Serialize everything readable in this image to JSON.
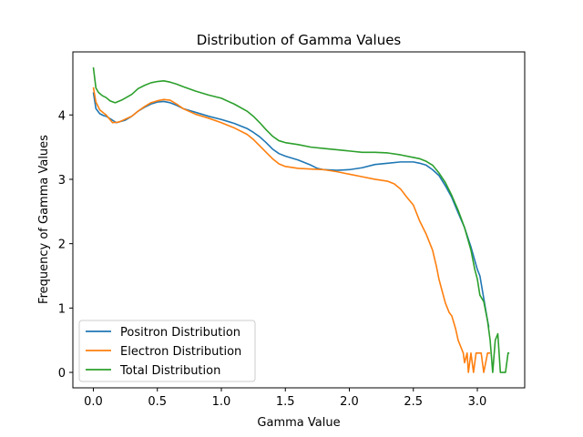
{
  "chart_data": {
    "type": "line",
    "title": "Distribution of Gamma Values",
    "xlabel": "Gamma Value",
    "ylabel": "Frequency of Gamma Values",
    "xlim": [
      -0.16,
      3.37
    ],
    "ylim": [
      -0.24,
      4.98
    ],
    "xticks": [
      0.0,
      0.5,
      1.0,
      1.5,
      2.0,
      2.5,
      3.0
    ],
    "xtick_labels": [
      "0.0",
      "0.5",
      "1.0",
      "1.5",
      "2.0",
      "2.5",
      "3.0"
    ],
    "yticks": [
      0,
      1,
      2,
      3,
      4
    ],
    "ytick_labels": [
      "0",
      "1",
      "2",
      "3",
      "4"
    ],
    "grid": false,
    "legend_position": "lower-left",
    "series": [
      {
        "name": "Positron Distribution",
        "color": "#1f77b4",
        "points": [
          [
            0.0,
            4.35
          ],
          [
            0.02,
            4.1
          ],
          [
            0.05,
            4.02
          ],
          [
            0.08,
            3.99
          ],
          [
            0.1,
            3.98
          ],
          [
            0.14,
            3.93
          ],
          [
            0.18,
            3.88
          ],
          [
            0.25,
            3.92
          ],
          [
            0.3,
            3.98
          ],
          [
            0.35,
            4.06
          ],
          [
            0.4,
            4.12
          ],
          [
            0.45,
            4.17
          ],
          [
            0.5,
            4.2
          ],
          [
            0.55,
            4.21
          ],
          [
            0.6,
            4.19
          ],
          [
            0.65,
            4.15
          ],
          [
            0.7,
            4.1
          ],
          [
            0.8,
            4.04
          ],
          [
            0.9,
            3.98
          ],
          [
            1.0,
            3.93
          ],
          [
            1.1,
            3.87
          ],
          [
            1.2,
            3.79
          ],
          [
            1.25,
            3.73
          ],
          [
            1.3,
            3.66
          ],
          [
            1.35,
            3.57
          ],
          [
            1.4,
            3.47
          ],
          [
            1.45,
            3.4
          ],
          [
            1.5,
            3.36
          ],
          [
            1.6,
            3.3
          ],
          [
            1.7,
            3.22
          ],
          [
            1.75,
            3.17
          ],
          [
            1.8,
            3.15
          ],
          [
            1.9,
            3.14
          ],
          [
            2.0,
            3.15
          ],
          [
            2.1,
            3.18
          ],
          [
            2.2,
            3.23
          ],
          [
            2.3,
            3.25
          ],
          [
            2.4,
            3.27
          ],
          [
            2.5,
            3.27
          ],
          [
            2.55,
            3.25
          ],
          [
            2.6,
            3.22
          ],
          [
            2.65,
            3.15
          ],
          [
            2.7,
            3.06
          ],
          [
            2.75,
            2.9
          ],
          [
            2.8,
            2.72
          ],
          [
            2.85,
            2.48
          ],
          [
            2.9,
            2.25
          ],
          [
            2.95,
            1.95
          ],
          [
            3.0,
            1.6
          ],
          [
            3.02,
            1.5
          ],
          [
            3.05,
            1.15
          ],
          [
            3.08,
            0.8
          ],
          [
            3.09,
            0.7
          ]
        ]
      },
      {
        "name": "Electron Distribution",
        "color": "#ff7f0e",
        "points": [
          [
            0.0,
            4.43
          ],
          [
            0.02,
            4.2
          ],
          [
            0.05,
            4.08
          ],
          [
            0.08,
            4.03
          ],
          [
            0.1,
            4.0
          ],
          [
            0.15,
            3.88
          ],
          [
            0.2,
            3.89
          ],
          [
            0.3,
            3.98
          ],
          [
            0.35,
            4.06
          ],
          [
            0.4,
            4.13
          ],
          [
            0.45,
            4.19
          ],
          [
            0.5,
            4.22
          ],
          [
            0.55,
            4.24
          ],
          [
            0.6,
            4.23
          ],
          [
            0.65,
            4.17
          ],
          [
            0.7,
            4.1
          ],
          [
            0.8,
            4.01
          ],
          [
            0.9,
            3.95
          ],
          [
            1.0,
            3.88
          ],
          [
            1.1,
            3.8
          ],
          [
            1.2,
            3.7
          ],
          [
            1.25,
            3.62
          ],
          [
            1.3,
            3.52
          ],
          [
            1.35,
            3.42
          ],
          [
            1.4,
            3.32
          ],
          [
            1.45,
            3.24
          ],
          [
            1.5,
            3.2
          ],
          [
            1.6,
            3.17
          ],
          [
            1.7,
            3.16
          ],
          [
            1.8,
            3.15
          ],
          [
            1.9,
            3.12
          ],
          [
            2.0,
            3.08
          ],
          [
            2.1,
            3.04
          ],
          [
            2.2,
            3.0
          ],
          [
            2.3,
            2.97
          ],
          [
            2.35,
            2.93
          ],
          [
            2.4,
            2.85
          ],
          [
            2.45,
            2.72
          ],
          [
            2.5,
            2.6
          ],
          [
            2.55,
            2.35
          ],
          [
            2.6,
            2.15
          ],
          [
            2.65,
            1.9
          ],
          [
            2.68,
            1.65
          ],
          [
            2.7,
            1.45
          ],
          [
            2.72,
            1.3
          ],
          [
            2.75,
            1.08
          ],
          [
            2.78,
            0.93
          ],
          [
            2.8,
            0.88
          ],
          [
            2.83,
            0.68
          ],
          [
            2.85,
            0.5
          ],
          [
            2.87,
            0.4
          ],
          [
            2.89,
            0.3
          ],
          [
            2.9,
            0.15
          ],
          [
            2.92,
            0.3
          ],
          [
            2.93,
            0.0
          ],
          [
            2.95,
            0.3
          ],
          [
            2.97,
            0.0
          ],
          [
            2.99,
            0.3
          ],
          [
            3.03,
            0.3
          ],
          [
            3.05,
            0.0
          ],
          [
            3.08,
            0.3
          ],
          [
            3.1,
            0.3
          ]
        ]
      },
      {
        "name": "Total Distribution",
        "color": "#2ca02c",
        "points": [
          [
            0.0,
            4.74
          ],
          [
            0.02,
            4.42
          ],
          [
            0.04,
            4.35
          ],
          [
            0.07,
            4.3
          ],
          [
            0.1,
            4.27
          ],
          [
            0.13,
            4.22
          ],
          [
            0.17,
            4.19
          ],
          [
            0.22,
            4.23
          ],
          [
            0.3,
            4.32
          ],
          [
            0.35,
            4.41
          ],
          [
            0.4,
            4.46
          ],
          [
            0.45,
            4.5
          ],
          [
            0.5,
            4.52
          ],
          [
            0.55,
            4.53
          ],
          [
            0.6,
            4.51
          ],
          [
            0.65,
            4.48
          ],
          [
            0.7,
            4.44
          ],
          [
            0.8,
            4.37
          ],
          [
            0.9,
            4.31
          ],
          [
            1.0,
            4.26
          ],
          [
            1.1,
            4.17
          ],
          [
            1.2,
            4.06
          ],
          [
            1.25,
            3.98
          ],
          [
            1.3,
            3.88
          ],
          [
            1.35,
            3.77
          ],
          [
            1.4,
            3.67
          ],
          [
            1.45,
            3.6
          ],
          [
            1.5,
            3.57
          ],
          [
            1.6,
            3.54
          ],
          [
            1.7,
            3.5
          ],
          [
            1.8,
            3.48
          ],
          [
            1.9,
            3.46
          ],
          [
            2.0,
            3.44
          ],
          [
            2.1,
            3.42
          ],
          [
            2.2,
            3.42
          ],
          [
            2.3,
            3.41
          ],
          [
            2.4,
            3.38
          ],
          [
            2.5,
            3.34
          ],
          [
            2.55,
            3.32
          ],
          [
            2.6,
            3.28
          ],
          [
            2.65,
            3.22
          ],
          [
            2.7,
            3.1
          ],
          [
            2.75,
            2.95
          ],
          [
            2.8,
            2.75
          ],
          [
            2.85,
            2.52
          ],
          [
            2.9,
            2.25
          ],
          [
            2.95,
            1.9
          ],
          [
            2.98,
            1.6
          ],
          [
            3.0,
            1.45
          ],
          [
            3.02,
            1.2
          ],
          [
            3.05,
            1.1
          ],
          [
            3.08,
            0.8
          ],
          [
            3.1,
            0.5
          ],
          [
            3.12,
            0.0
          ],
          [
            3.14,
            0.5
          ],
          [
            3.16,
            0.6
          ],
          [
            3.18,
            0.0
          ],
          [
            3.2,
            0.0
          ],
          [
            3.22,
            0.0
          ],
          [
            3.24,
            0.3
          ],
          [
            3.25,
            0.3
          ]
        ]
      }
    ]
  }
}
